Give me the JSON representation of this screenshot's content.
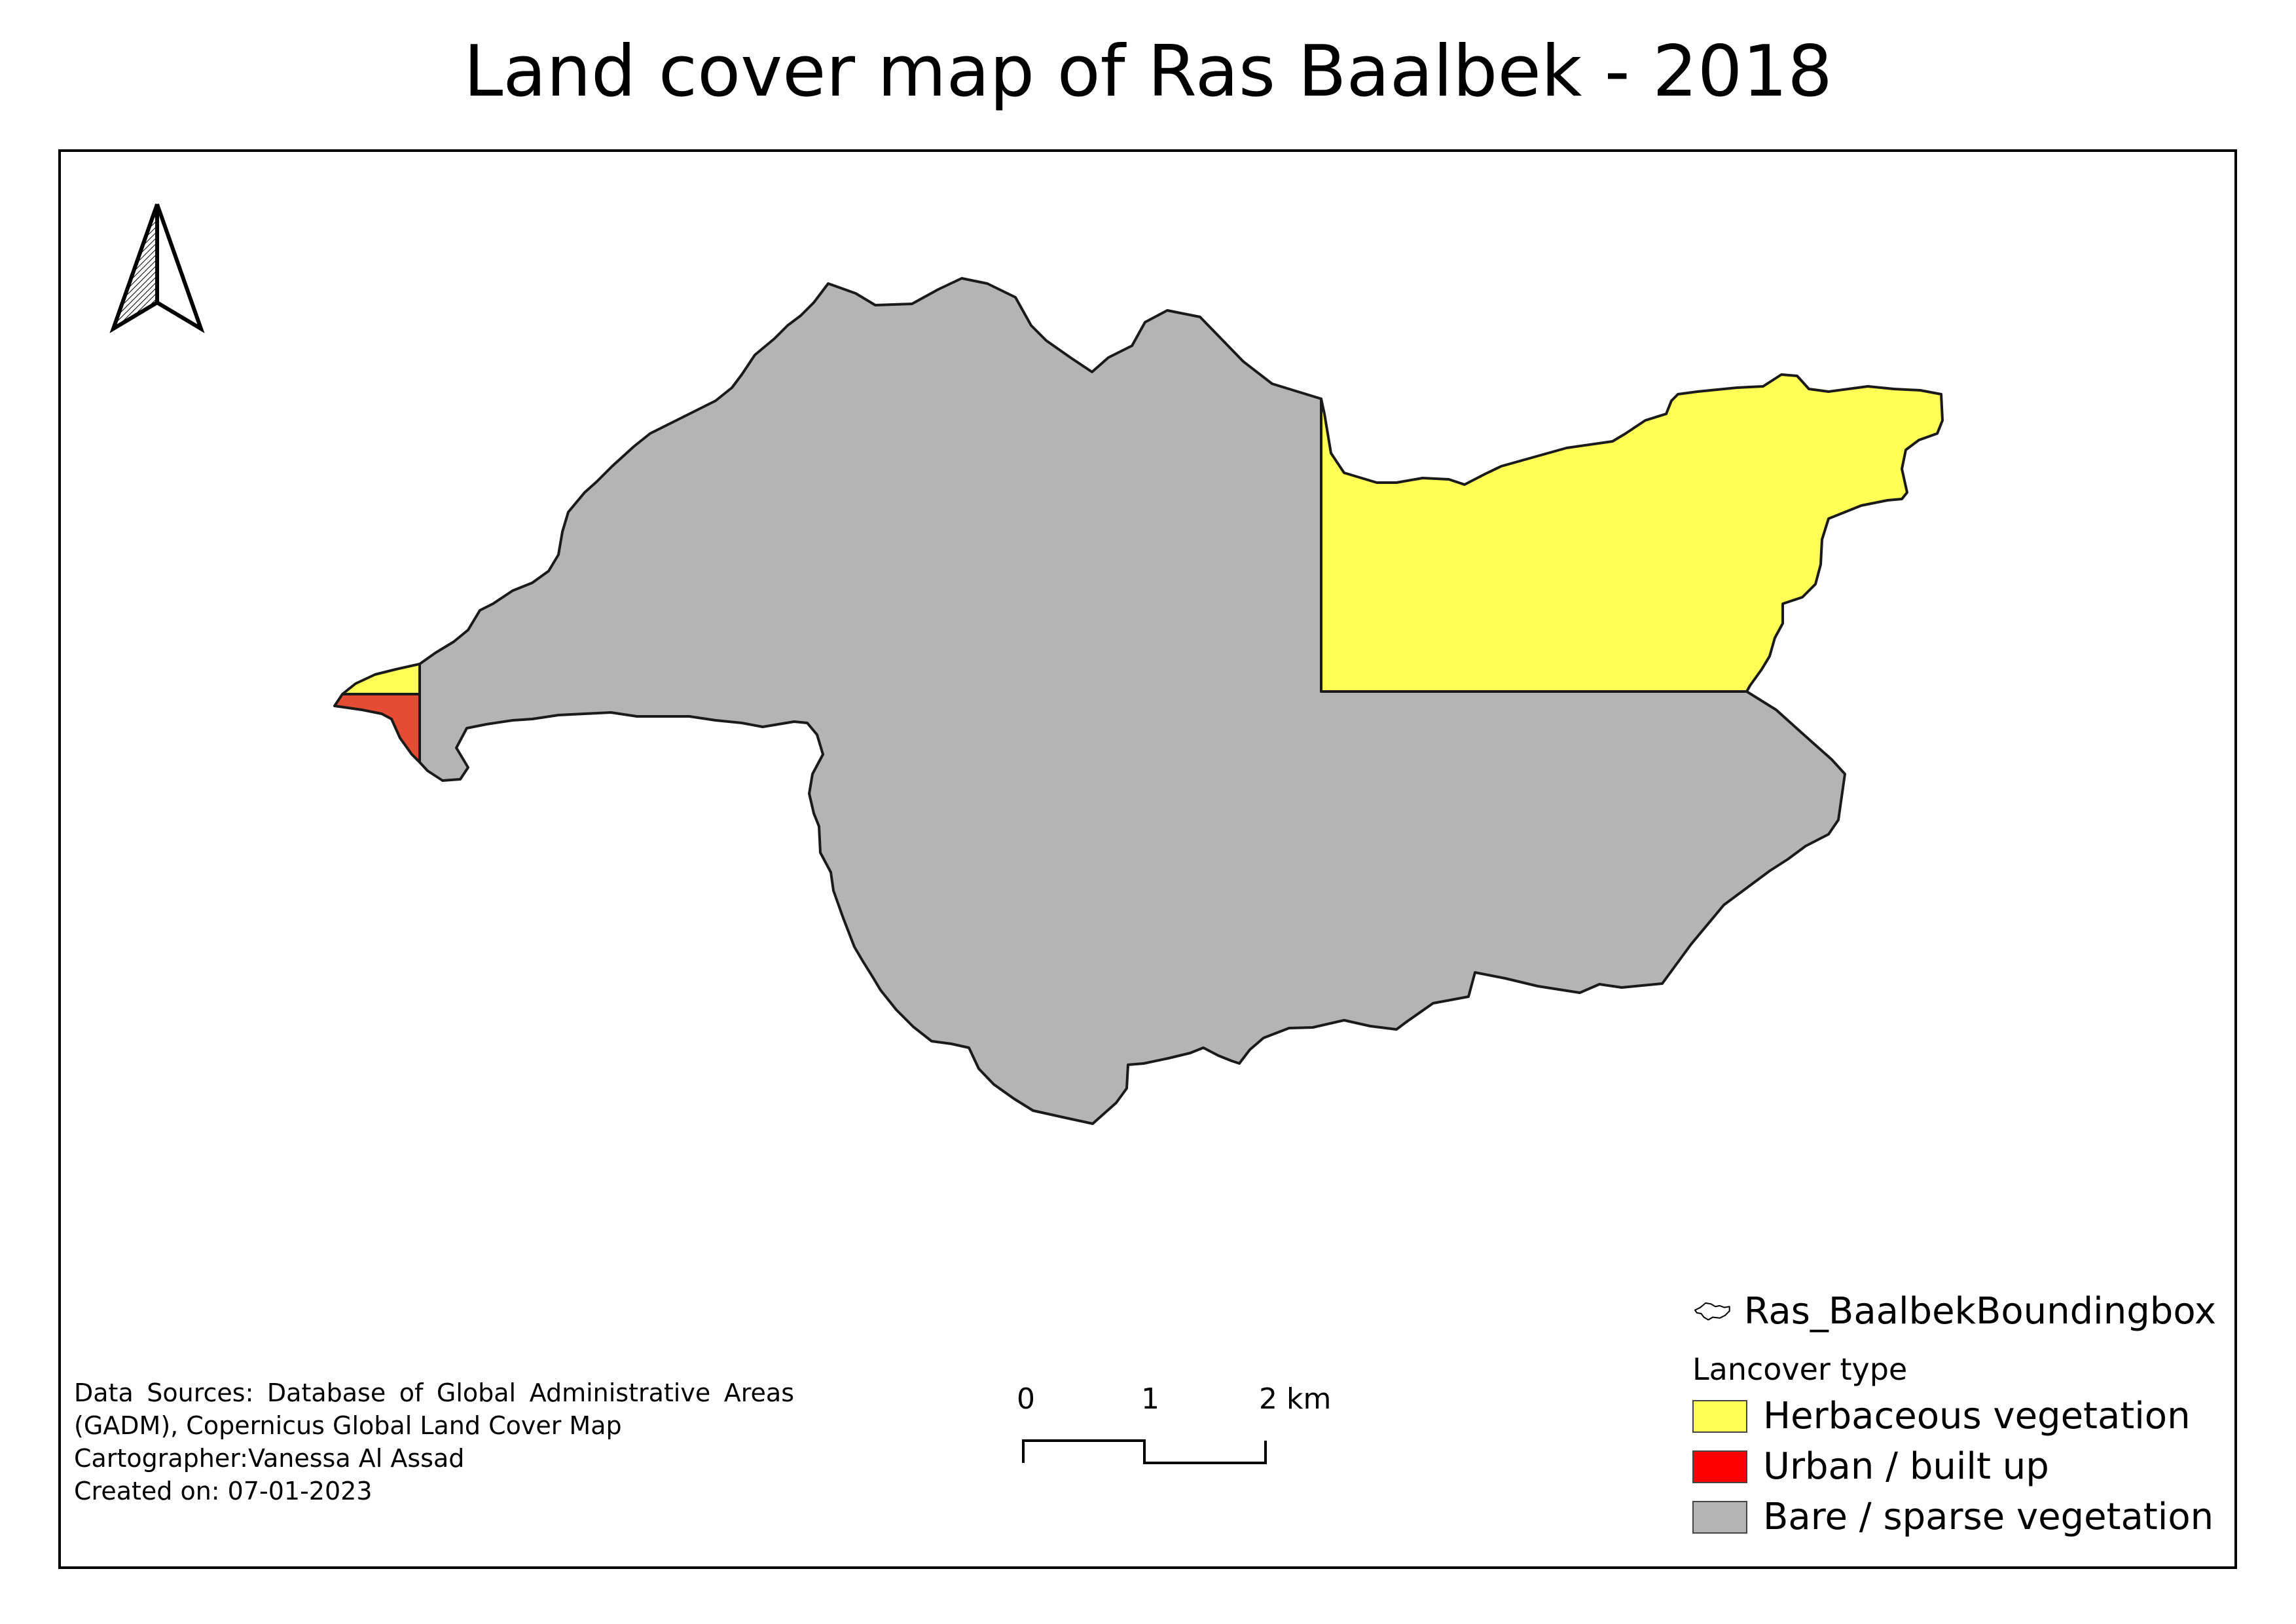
{
  "title": "Land cover map of Ras Baalbek - 2018",
  "colors": {
    "herbaceous": "#ffff55",
    "urban": "#ff0000",
    "urban_map": "#e44c33",
    "bare": "#b4b4b4",
    "outline": "#1a1a1a"
  },
  "legend": {
    "layer_label": "Ras_BaalbekBoundingbox",
    "group_label": "Lancover type",
    "items": [
      {
        "label": "Herbaceous vegetation",
        "color": "#ffff55"
      },
      {
        "label": "Urban / built up",
        "color": "#ff0000"
      },
      {
        "label": "Bare / sparse vegetation",
        "color": "#b4b4b4"
      }
    ]
  },
  "sources": {
    "line1": "Data Sources: Database of Global Administrative Areas",
    "line2": "(GADM), Copernicus Global Land Cover Map",
    "line3": "Cartographer:Vanessa Al Assad",
    "line4": "Created on: 07-01-2023"
  },
  "scalebar": {
    "labels": [
      "0",
      "1",
      "2 km"
    ]
  },
  "icons": {
    "north_arrow": "north-arrow-icon",
    "layer_symbol": "polygon-outline-icon"
  }
}
